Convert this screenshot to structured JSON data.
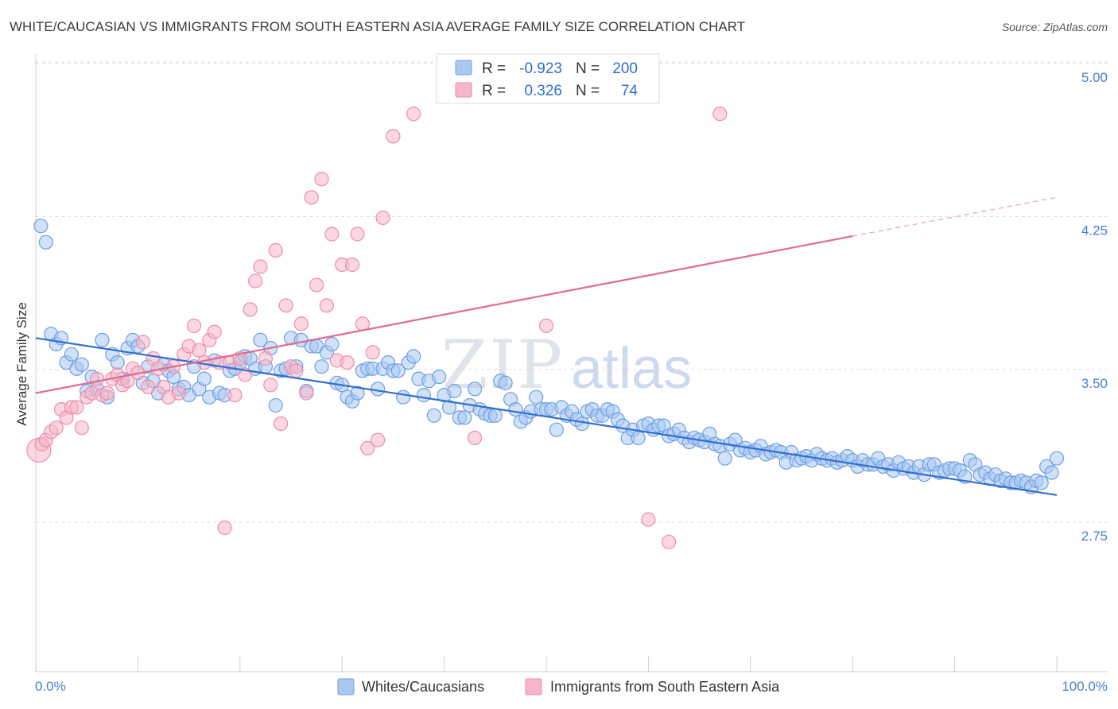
{
  "title": "WHITE/CAUCASIAN VS IMMIGRANTS FROM SOUTH EASTERN ASIA AVERAGE FAMILY SIZE CORRELATION CHART",
  "source": "Source: ZipAtlas.com",
  "watermark": {
    "zip": "ZIP",
    "atlas": "atlas"
  },
  "legend": {
    "r_label": "R =",
    "n_label": "N =",
    "rows": [
      {
        "r": "-0.923",
        "n": "200",
        "color": "#a9c8f2"
      },
      {
        "r": "0.326",
        "n": "74",
        "color": "#f6b6c9"
      }
    ]
  },
  "chart_data": {
    "type": "scatter",
    "title": "WHITE/CAUCASIAN VS IMMIGRANTS FROM SOUTH EASTERN ASIA AVERAGE FAMILY SIZE CORRELATION CHART",
    "xlabel": "",
    "ylabel": "Average Family Size",
    "xlim": [
      0,
      100
    ],
    "ylim": [
      2.0,
      5.1
    ],
    "x_tick_labels": [
      "0.0%",
      "100.0%"
    ],
    "y_ticks": [
      {
        "value": 5.0,
        "label": "5.00"
      },
      {
        "value": 4.25,
        "label": "4.25"
      },
      {
        "value": 3.5,
        "label": "3.50"
      },
      {
        "value": 2.75,
        "label": "2.75"
      }
    ],
    "grid": "horizontal dashed",
    "legend_position": "bottom",
    "series": [
      {
        "name": "Whites/Caucasians",
        "color": "#a9c8f2",
        "stroke": "#6f9fe0",
        "trend_color": "#2f6fd1",
        "trend": {
          "x0": 0,
          "y0": 3.72,
          "x1": 100,
          "y1": 2.95
        },
        "points": [
          [
            0.5,
            4.27
          ],
          [
            1,
            4.19
          ],
          [
            1.5,
            3.74
          ],
          [
            2,
            3.69
          ],
          [
            2.5,
            3.72
          ],
          [
            3,
            3.6
          ],
          [
            3.5,
            3.64
          ],
          [
            4,
            3.57
          ],
          [
            4.5,
            3.59
          ],
          [
            5,
            3.46
          ],
          [
            5.5,
            3.53
          ],
          [
            6,
            3.47
          ],
          [
            6.5,
            3.71
          ],
          [
            7,
            3.43
          ],
          [
            7.5,
            3.64
          ],
          [
            8,
            3.6
          ],
          [
            8.5,
            3.52
          ],
          [
            9,
            3.67
          ],
          [
            9.5,
            3.71
          ],
          [
            10,
            3.68
          ],
          [
            10.5,
            3.5
          ],
          [
            11,
            3.58
          ],
          [
            11.5,
            3.51
          ],
          [
            12,
            3.45
          ],
          [
            12.5,
            3.59
          ],
          [
            13,
            3.56
          ],
          [
            13.5,
            3.53
          ],
          [
            14,
            3.47
          ],
          [
            14.5,
            3.48
          ],
          [
            15,
            3.44
          ],
          [
            15.5,
            3.58
          ],
          [
            16,
            3.47
          ],
          [
            16.5,
            3.52
          ],
          [
            17,
            3.43
          ],
          [
            17.5,
            3.61
          ],
          [
            18,
            3.45
          ],
          [
            18.5,
            3.44
          ],
          [
            19,
            3.56
          ],
          [
            19.5,
            3.57
          ],
          [
            20,
            3.6
          ],
          [
            20.5,
            3.63
          ],
          [
            21,
            3.62
          ],
          [
            21.5,
            3.57
          ],
          [
            22,
            3.71
          ],
          [
            22.5,
            3.58
          ],
          [
            23,
            3.67
          ],
          [
            23.5,
            3.39
          ],
          [
            24,
            3.56
          ],
          [
            24.5,
            3.57
          ],
          [
            25,
            3.72
          ],
          [
            25.5,
            3.58
          ],
          [
            26,
            3.71
          ],
          [
            26.5,
            3.46
          ],
          [
            27,
            3.68
          ],
          [
            27.5,
            3.68
          ],
          [
            28,
            3.58
          ],
          [
            28.5,
            3.65
          ],
          [
            29,
            3.69
          ],
          [
            29.5,
            3.5
          ],
          [
            30,
            3.49
          ],
          [
            30.5,
            3.43
          ],
          [
            31,
            3.41
          ],
          [
            31.5,
            3.45
          ],
          [
            32,
            3.56
          ],
          [
            32.5,
            3.57
          ],
          [
            33,
            3.57
          ],
          [
            33.5,
            3.47
          ],
          [
            34,
            3.57
          ],
          [
            34.5,
            3.6
          ],
          [
            35,
            3.56
          ],
          [
            35.5,
            3.56
          ],
          [
            36,
            3.43
          ],
          [
            36.5,
            3.6
          ],
          [
            37,
            3.63
          ],
          [
            37.5,
            3.52
          ],
          [
            38,
            3.44
          ],
          [
            38.5,
            3.51
          ],
          [
            39,
            3.34
          ],
          [
            39.5,
            3.53
          ],
          [
            40,
            3.44
          ],
          [
            40.5,
            3.38
          ],
          [
            41,
            3.46
          ],
          [
            41.5,
            3.33
          ],
          [
            42,
            3.33
          ],
          [
            42.5,
            3.39
          ],
          [
            43,
            3.47
          ],
          [
            43.5,
            3.37
          ],
          [
            44,
            3.35
          ],
          [
            44.5,
            3.34
          ],
          [
            45,
            3.34
          ],
          [
            45.5,
            3.51
          ],
          [
            46,
            3.5
          ],
          [
            46.5,
            3.42
          ],
          [
            47,
            3.37
          ],
          [
            47.5,
            3.31
          ],
          [
            48,
            3.33
          ],
          [
            48.5,
            3.36
          ],
          [
            49,
            3.43
          ],
          [
            49.5,
            3.37
          ],
          [
            50,
            3.37
          ],
          [
            50.5,
            3.37
          ],
          [
            51,
            3.27
          ],
          [
            51.5,
            3.38
          ],
          [
            52,
            3.34
          ],
          [
            52.5,
            3.36
          ],
          [
            53,
            3.32
          ],
          [
            53.5,
            3.3
          ],
          [
            54,
            3.36
          ],
          [
            54.5,
            3.37
          ],
          [
            55,
            3.34
          ],
          [
            55.5,
            3.34
          ],
          [
            56,
            3.37
          ],
          [
            56.5,
            3.36
          ],
          [
            57,
            3.32
          ],
          [
            57.5,
            3.29
          ],
          [
            58,
            3.23
          ],
          [
            58.5,
            3.27
          ],
          [
            59,
            3.23
          ],
          [
            59.5,
            3.29
          ],
          [
            60,
            3.3
          ],
          [
            60.5,
            3.27
          ],
          [
            61,
            3.29
          ],
          [
            61.5,
            3.29
          ],
          [
            62,
            3.24
          ],
          [
            62.5,
            3.25
          ],
          [
            63,
            3.27
          ],
          [
            63.5,
            3.23
          ],
          [
            64,
            3.21
          ],
          [
            64.5,
            3.23
          ],
          [
            65,
            3.22
          ],
          [
            65.5,
            3.21
          ],
          [
            66,
            3.25
          ],
          [
            66.5,
            3.2
          ],
          [
            67,
            3.19
          ],
          [
            67.5,
            3.13
          ],
          [
            68,
            3.2
          ],
          [
            68.5,
            3.22
          ],
          [
            69,
            3.17
          ],
          [
            69.5,
            3.18
          ],
          [
            70,
            3.16
          ],
          [
            70.5,
            3.17
          ],
          [
            71,
            3.19
          ],
          [
            71.5,
            3.15
          ],
          [
            72,
            3.16
          ],
          [
            72.5,
            3.17
          ],
          [
            73,
            3.16
          ],
          [
            73.5,
            3.11
          ],
          [
            74,
            3.16
          ],
          [
            74.5,
            3.12
          ],
          [
            75,
            3.13
          ],
          [
            75.5,
            3.14
          ],
          [
            76,
            3.12
          ],
          [
            76.5,
            3.15
          ],
          [
            77,
            3.13
          ],
          [
            77.5,
            3.12
          ],
          [
            78,
            3.13
          ],
          [
            78.5,
            3.11
          ],
          [
            79,
            3.12
          ],
          [
            79.5,
            3.14
          ],
          [
            80,
            3.12
          ],
          [
            80.5,
            3.09
          ],
          [
            81,
            3.12
          ],
          [
            81.5,
            3.1
          ],
          [
            82,
            3.1
          ],
          [
            82.5,
            3.13
          ],
          [
            83,
            3.09
          ],
          [
            83.5,
            3.1
          ],
          [
            84,
            3.07
          ],
          [
            84.5,
            3.11
          ],
          [
            85,
            3.08
          ],
          [
            85.5,
            3.09
          ],
          [
            86,
            3.06
          ],
          [
            86.5,
            3.09
          ],
          [
            87,
            3.05
          ],
          [
            87.5,
            3.1
          ],
          [
            88,
            3.1
          ],
          [
            88.5,
            3.06
          ],
          [
            89,
            3.07
          ],
          [
            89.5,
            3.08
          ],
          [
            90,
            3.08
          ],
          [
            90.5,
            3.07
          ],
          [
            91,
            3.04
          ],
          [
            91.5,
            3.12
          ],
          [
            92,
            3.1
          ],
          [
            92.5,
            3.05
          ],
          [
            93,
            3.06
          ],
          [
            93.5,
            3.03
          ],
          [
            94,
            3.05
          ],
          [
            94.5,
            3.02
          ],
          [
            95,
            3.03
          ],
          [
            95.5,
            3.01
          ],
          [
            96,
            3.01
          ],
          [
            96.5,
            3.02
          ],
          [
            97,
            3.01
          ],
          [
            97.5,
            2.99
          ],
          [
            98,
            3.02
          ],
          [
            98.5,
            3.01
          ],
          [
            99,
            3.09
          ],
          [
            99.5,
            3.06
          ],
          [
            100,
            3.13
          ]
        ]
      },
      {
        "name": "Immigrants from South Eastern Asia",
        "color": "#f6b6c9",
        "stroke": "#ee8cab",
        "trend_color": "#e06a92",
        "trend": {
          "x0": 0,
          "y0": 3.45,
          "x1": 80,
          "y1": 4.22,
          "dashed_to_x": 100,
          "dashed_to_y": 4.41
        },
        "points": [
          [
            0.3,
            3.17
          ],
          [
            0.6,
            3.2
          ],
          [
            1,
            3.22
          ],
          [
            1.5,
            3.26
          ],
          [
            2,
            3.28
          ],
          [
            2.5,
            3.37
          ],
          [
            3,
            3.33
          ],
          [
            3.5,
            3.38
          ],
          [
            4,
            3.38
          ],
          [
            4.5,
            3.28
          ],
          [
            5,
            3.43
          ],
          [
            5.5,
            3.45
          ],
          [
            6,
            3.52
          ],
          [
            6.5,
            3.44
          ],
          [
            7,
            3.45
          ],
          [
            7.5,
            3.52
          ],
          [
            8,
            3.54
          ],
          [
            8.5,
            3.49
          ],
          [
            9,
            3.51
          ],
          [
            9.5,
            3.57
          ],
          [
            10,
            3.55
          ],
          [
            10.5,
            3.7
          ],
          [
            11,
            3.48
          ],
          [
            11.5,
            3.62
          ],
          [
            12,
            3.57
          ],
          [
            12.5,
            3.48
          ],
          [
            13,
            3.43
          ],
          [
            13.5,
            3.58
          ],
          [
            14,
            3.45
          ],
          [
            14.5,
            3.64
          ],
          [
            15,
            3.68
          ],
          [
            15.5,
            3.78
          ],
          [
            16,
            3.66
          ],
          [
            16.5,
            3.6
          ],
          [
            17,
            3.71
          ],
          [
            17.5,
            3.75
          ],
          [
            18,
            3.6
          ],
          [
            18.5,
            2.79
          ],
          [
            19,
            3.6
          ],
          [
            19.5,
            3.44
          ],
          [
            20,
            3.62
          ],
          [
            20.5,
            3.54
          ],
          [
            21,
            3.86
          ],
          [
            21.5,
            4.0
          ],
          [
            22,
            4.07
          ],
          [
            22.5,
            3.62
          ],
          [
            23,
            3.49
          ],
          [
            23.5,
            4.15
          ],
          [
            24,
            3.3
          ],
          [
            24.5,
            3.88
          ],
          [
            25,
            3.58
          ],
          [
            25.5,
            3.56
          ],
          [
            26,
            3.79
          ],
          [
            26.5,
            3.45
          ],
          [
            27,
            4.41
          ],
          [
            27.5,
            3.98
          ],
          [
            28,
            4.5
          ],
          [
            28.5,
            3.88
          ],
          [
            29,
            4.23
          ],
          [
            29.5,
            3.61
          ],
          [
            30,
            4.08
          ],
          [
            30.5,
            3.6
          ],
          [
            31,
            4.08
          ],
          [
            31.5,
            4.23
          ],
          [
            32,
            3.79
          ],
          [
            32.5,
            3.18
          ],
          [
            33,
            3.65
          ],
          [
            33.5,
            3.22
          ],
          [
            34,
            4.31
          ],
          [
            35,
            4.71
          ],
          [
            37,
            4.82
          ],
          [
            43,
            3.23
          ],
          [
            50,
            3.78
          ],
          [
            60,
            2.83
          ],
          [
            62,
            2.72
          ],
          [
            67,
            4.82
          ]
        ]
      }
    ]
  },
  "bottom_legend": [
    {
      "label": "Whites/Caucasians"
    },
    {
      "label": "Immigrants from South Eastern Asia"
    }
  ]
}
